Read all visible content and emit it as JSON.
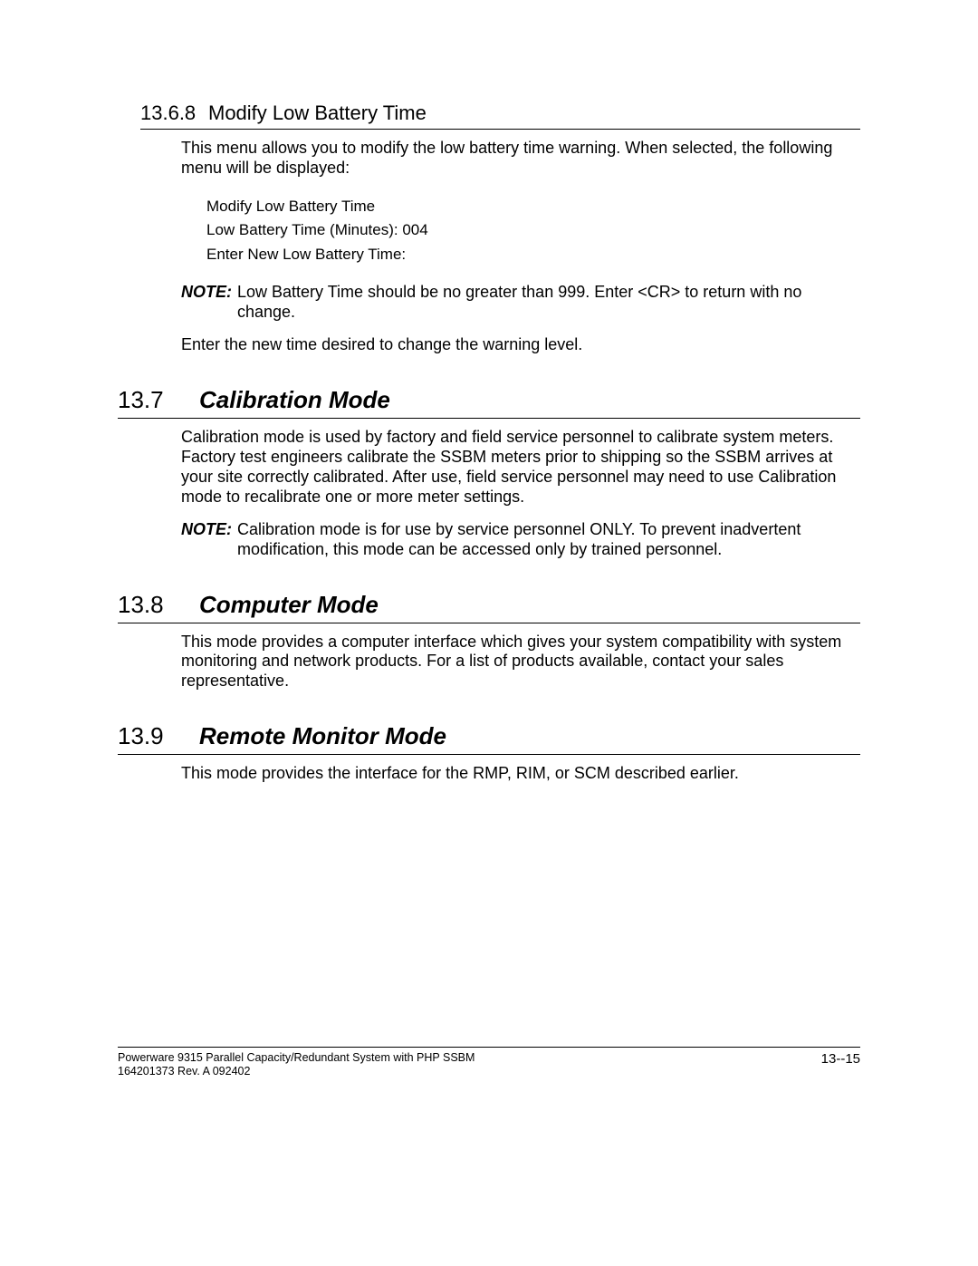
{
  "subsection_1368": {
    "number": "13.6.8",
    "title": "Modify Low Battery Time",
    "intro": "This menu allows you to modify the low battery time warning. When selected, the following menu will be displayed:",
    "menu_lines": [
      "Modify Low Battery Time",
      "Low Battery Time (Minutes):  004",
      "Enter New Low Battery Time:"
    ],
    "note_label": "NOTE:",
    "note_body": "Low Battery Time should be no greater than 999.  Enter <CR> to return with no change.",
    "closing": "Enter the new time desired to change the warning level."
  },
  "section_137": {
    "number": "13.7",
    "title": "Calibration Mode",
    "para": "Calibration mode is used by factory and field service personnel to calibrate system meters.  Factory test engineers calibrate the SSBM meters prior to shipping so the SSBM arrives at your site correctly calibrated.  After use, field service personnel may need to use Calibration mode to recalibrate one or more meter settings.",
    "note_label": "NOTE:",
    "note_body": "Calibration mode is for use by service personnel ONLY.  To prevent inadvertent modification, this mode can be accessed only by trained personnel."
  },
  "section_138": {
    "number": "13.8",
    "title": "Computer Mode",
    "para": "This mode provides a computer interface which gives your system compatibility with system monitoring and network products. For a list of products available, contact your sales representative."
  },
  "section_139": {
    "number": "13.9",
    "title": "Remote Monitor Mode",
    "para": "This mode provides the interface for the RMP, RIM, or SCM described earlier."
  },
  "footer": {
    "line1": "Powerware 9315 Parallel Capacity/Redundant System with PHP SSBM",
    "line2": "164201373    Rev. A       092402",
    "page": "13--15"
  }
}
